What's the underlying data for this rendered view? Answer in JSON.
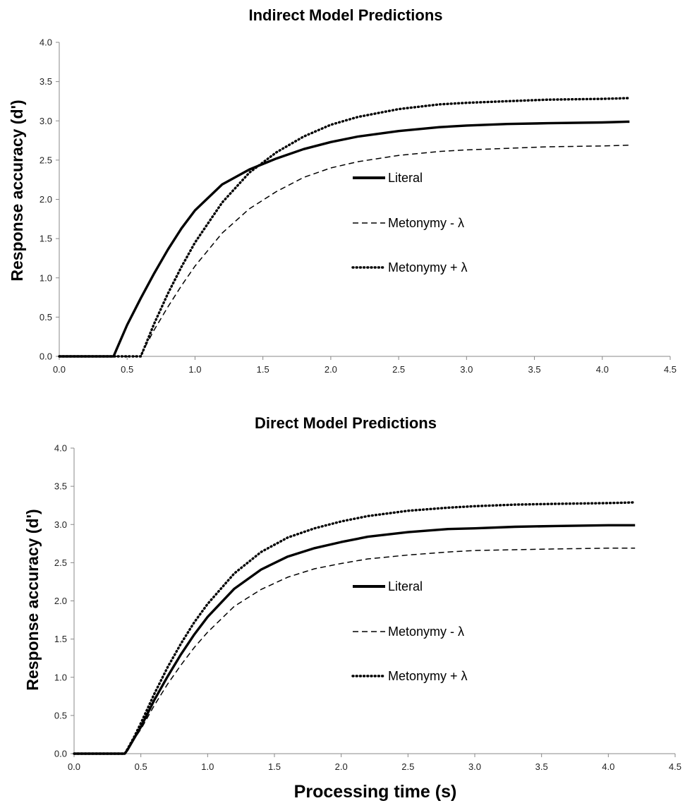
{
  "chart_data": [
    {
      "type": "line",
      "title": "Indirect Model Predictions",
      "xlabel": "",
      "ylabel": "Response accuracy (d')",
      "xlim": [
        0,
        4.5
      ],
      "ylim": [
        0,
        4.0
      ],
      "x_ticks": [
        "0.0",
        "0.5",
        "1.0",
        "1.5",
        "2.0",
        "2.5",
        "3.0",
        "3.5",
        "4.0",
        "4.5"
      ],
      "y_ticks": [
        "0.0",
        "0.5",
        "1.0",
        "1.5",
        "2.0",
        "2.5",
        "3.0",
        "3.5",
        "4.0"
      ],
      "grid": false,
      "legend_position": "center-right",
      "series": [
        {
          "name": "Literal",
          "style": "solid",
          "x": [
            0.0,
            0.4,
            0.42,
            0.5,
            0.6,
            0.7,
            0.8,
            0.9,
            1.0,
            1.2,
            1.4,
            1.6,
            1.8,
            2.0,
            2.2,
            2.5,
            2.8,
            3.0,
            3.3,
            3.6,
            4.0,
            4.2
          ],
          "y": [
            0,
            0,
            0.08,
            0.4,
            0.74,
            1.06,
            1.36,
            1.63,
            1.86,
            2.19,
            2.38,
            2.52,
            2.64,
            2.73,
            2.8,
            2.87,
            2.92,
            2.94,
            2.96,
            2.97,
            2.98,
            2.99
          ]
        },
        {
          "name": "Metonymy - λ",
          "style": "dashed",
          "x": [
            0.0,
            0.6,
            0.62,
            0.7,
            0.8,
            0.9,
            1.0,
            1.2,
            1.4,
            1.6,
            1.8,
            2.0,
            2.2,
            2.5,
            2.8,
            3.0,
            3.3,
            3.6,
            4.0,
            4.2
          ],
          "y": [
            0,
            0,
            0.08,
            0.34,
            0.63,
            0.9,
            1.15,
            1.57,
            1.88,
            2.1,
            2.28,
            2.4,
            2.48,
            2.56,
            2.61,
            2.63,
            2.65,
            2.67,
            2.68,
            2.69
          ]
        },
        {
          "name": "Metonymy + λ",
          "style": "dotted",
          "x": [
            0.0,
            0.6,
            0.62,
            0.7,
            0.8,
            0.9,
            1.0,
            1.2,
            1.4,
            1.6,
            1.8,
            2.0,
            2.2,
            2.5,
            2.8,
            3.0,
            3.3,
            3.6,
            4.0,
            4.2
          ],
          "y": [
            0,
            0,
            0.08,
            0.42,
            0.8,
            1.14,
            1.45,
            1.96,
            2.34,
            2.6,
            2.8,
            2.95,
            3.05,
            3.15,
            3.21,
            3.23,
            3.25,
            3.27,
            3.28,
            3.29
          ]
        }
      ]
    },
    {
      "type": "line",
      "title": "Direct Model Predictions",
      "xlabel": "Processing time (s)",
      "ylabel": "Response accuracy (d')",
      "xlim": [
        0,
        4.5
      ],
      "ylim": [
        0,
        4.0
      ],
      "x_ticks": [
        "0.0",
        "0.5",
        "1.0",
        "1.5",
        "2.0",
        "2.5",
        "3.0",
        "3.5",
        "4.0",
        "4.5"
      ],
      "y_ticks": [
        "0.0",
        "0.5",
        "1.0",
        "1.5",
        "2.0",
        "2.5",
        "3.0",
        "3.5",
        "4.0"
      ],
      "grid": false,
      "legend_position": "center-right",
      "series": [
        {
          "name": "Literal",
          "style": "solid",
          "x": [
            0.0,
            0.38,
            0.4,
            0.45,
            0.5,
            0.6,
            0.7,
            0.8,
            0.9,
            1.0,
            1.2,
            1.4,
            1.6,
            1.8,
            2.0,
            2.2,
            2.5,
            2.8,
            3.0,
            3.3,
            3.6,
            4.0,
            4.2
          ],
          "y": [
            0,
            0,
            0.05,
            0.2,
            0.35,
            0.7,
            1.01,
            1.3,
            1.56,
            1.79,
            2.16,
            2.41,
            2.58,
            2.69,
            2.77,
            2.84,
            2.9,
            2.94,
            2.95,
            2.97,
            2.98,
            2.99,
            2.99
          ]
        },
        {
          "name": "Metonymy - λ",
          "style": "dashed",
          "x": [
            0.0,
            0.38,
            0.4,
            0.45,
            0.5,
            0.6,
            0.7,
            0.8,
            0.9,
            1.0,
            1.2,
            1.4,
            1.6,
            1.8,
            2.0,
            2.2,
            2.5,
            2.8,
            3.0,
            3.3,
            3.6,
            4.0,
            4.2
          ],
          "y": [
            0,
            0,
            0.05,
            0.19,
            0.32,
            0.63,
            0.91,
            1.16,
            1.39,
            1.59,
            1.93,
            2.15,
            2.31,
            2.42,
            2.49,
            2.55,
            2.6,
            2.64,
            2.66,
            2.67,
            2.68,
            2.69,
            2.69
          ]
        },
        {
          "name": "Metonymy + λ",
          "style": "dotted",
          "x": [
            0.0,
            0.38,
            0.4,
            0.45,
            0.5,
            0.6,
            0.7,
            0.8,
            0.9,
            1.0,
            1.2,
            1.4,
            1.6,
            1.8,
            2.0,
            2.2,
            2.5,
            2.8,
            3.0,
            3.3,
            3.6,
            4.0,
            4.2
          ],
          "y": [
            0,
            0,
            0.06,
            0.22,
            0.4,
            0.78,
            1.13,
            1.44,
            1.72,
            1.96,
            2.36,
            2.64,
            2.83,
            2.95,
            3.04,
            3.11,
            3.18,
            3.22,
            3.24,
            3.26,
            3.27,
            3.28,
            3.29
          ]
        }
      ]
    }
  ]
}
